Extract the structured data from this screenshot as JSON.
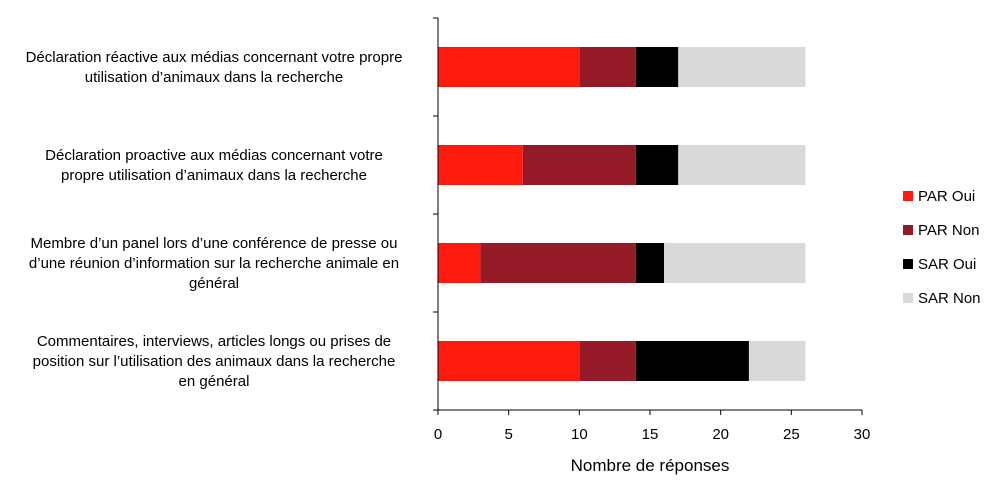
{
  "chart_data": {
    "type": "bar",
    "orientation": "horizontal",
    "stacked": true,
    "title": "",
    "xlabel": "Nombre de réponses",
    "ylabel": "",
    "xlim": [
      0,
      30
    ],
    "xticks": [
      "0",
      "5",
      "10",
      "15",
      "20",
      "25",
      "30"
    ],
    "grid": false,
    "legend_position": "right",
    "categories": [
      [
        "Déclaration réactive aux médias concernant votre propre",
        "utilisation d’animaux dans la recherche"
      ],
      [
        "Déclaration proactive aux médias concernant votre",
        "propre utilisation d’animaux dans la recherche"
      ],
      [
        "Membre d’un panel lors d’une conférence de presse ou",
        "d’une réunion d’information sur la recherche animale en",
        "général"
      ],
      [
        "Commentaires, interviews, articles longs ou prises de",
        "position sur l’utilisation des animaux dans la recherche",
        "en général"
      ]
    ],
    "series": [
      {
        "name": "PAR Oui",
        "color": "#ff1a0e",
        "values": [
          10,
          6,
          3,
          10
        ]
      },
      {
        "name": "PAR Non",
        "color": "#951a28",
        "values": [
          4,
          8,
          11,
          4
        ]
      },
      {
        "name": "SAR Oui",
        "color": "#000000",
        "values": [
          3,
          3,
          2,
          8
        ]
      },
      {
        "name": "SAR Non",
        "color": "#d9d9d9",
        "values": [
          9,
          9,
          10,
          4
        ]
      }
    ]
  }
}
